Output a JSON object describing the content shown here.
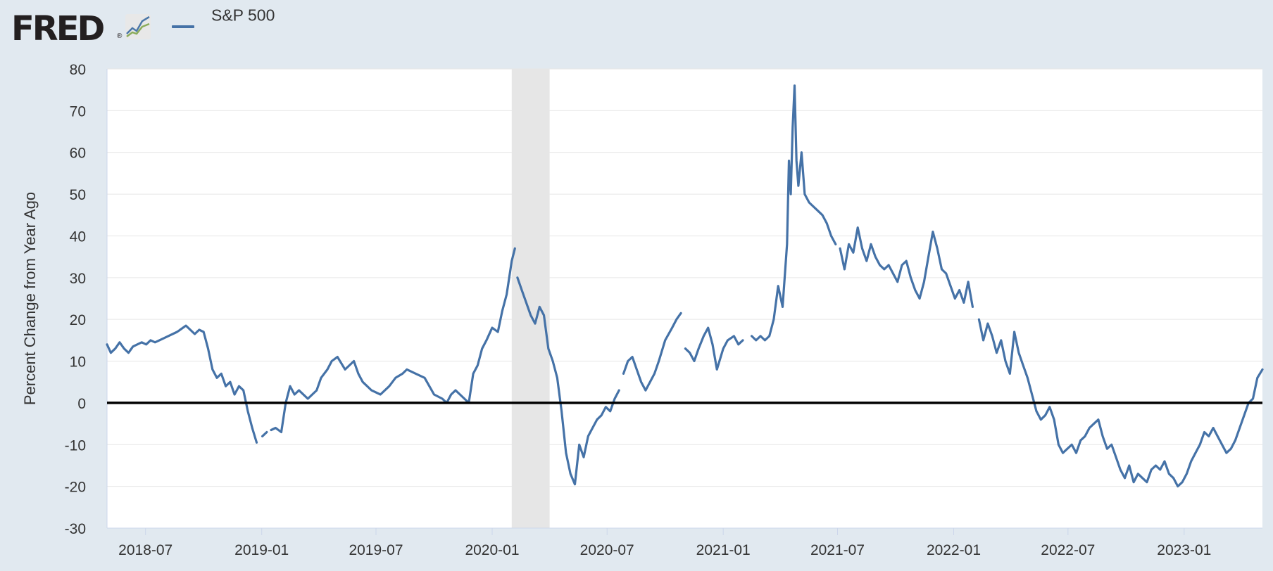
{
  "header": {
    "logo_text": "FRED",
    "logo_reg": "®",
    "logo_icon": "line-chart-icon"
  },
  "legend": {
    "series_label": "S&P 500",
    "series_color": "#4572a7"
  },
  "chart_data": {
    "type": "line",
    "title": "",
    "ylabel": "Percent Change from Year Ago",
    "xlabel": "",
    "x_unit": "date",
    "xlim": [
      "2018-05-01",
      "2023-05-05"
    ],
    "ylim": [
      -30,
      80
    ],
    "yticks": [
      -30,
      -20,
      -10,
      0,
      10,
      20,
      30,
      40,
      50,
      60,
      70,
      80
    ],
    "xticks": [
      "2018-07",
      "2019-01",
      "2019-07",
      "2020-01",
      "2020-07",
      "2021-01",
      "2021-07",
      "2022-01",
      "2022-07",
      "2023-01"
    ],
    "recession": {
      "start": "2020-02-01",
      "end": "2020-04-01"
    },
    "zero_line": 0,
    "grid": true,
    "series": [
      {
        "name": "S&P 500",
        "color": "#4572a7",
        "points": [
          [
            "2018-05-01",
            14
          ],
          [
            "2018-05-07",
            12
          ],
          [
            "2018-05-14",
            13
          ],
          [
            "2018-05-21",
            14.5
          ],
          [
            "2018-05-28",
            13
          ],
          [
            "2018-06-04",
            12
          ],
          [
            "2018-06-11",
            13.5
          ],
          [
            "2018-06-18",
            14
          ],
          [
            "2018-06-25",
            14.5
          ],
          [
            "2018-07-02",
            14
          ],
          [
            "2018-07-09",
            15
          ],
          [
            "2018-07-16",
            14.5
          ],
          [
            "2018-07-23",
            15
          ],
          [
            "2018-08-06",
            16
          ],
          [
            "2018-08-20",
            17
          ],
          [
            "2018-09-03",
            18.5
          ],
          [
            "2018-09-17",
            16.5
          ],
          [
            "2018-09-24",
            17.5
          ],
          [
            "2018-10-01",
            17
          ],
          [
            "2018-10-08",
            13
          ],
          [
            "2018-10-15",
            8
          ],
          [
            "2018-10-22",
            6
          ],
          [
            "2018-10-29",
            7
          ],
          [
            "2018-11-05",
            4
          ],
          [
            "2018-11-12",
            5
          ],
          [
            "2018-11-19",
            2
          ],
          [
            "2018-11-26",
            4
          ],
          [
            "2018-12-03",
            3
          ],
          [
            "2018-12-10",
            -2
          ],
          [
            "2018-12-17",
            -6
          ],
          [
            "2018-12-24",
            -9.5
          ],
          null,
          [
            "2019-01-02",
            -8
          ],
          [
            "2019-01-09",
            -7
          ],
          null,
          [
            "2019-01-16",
            -6.5
          ],
          [
            "2019-01-23",
            -6
          ],
          [
            "2019-02-01",
            -7
          ],
          [
            "2019-02-08",
            0
          ],
          [
            "2019-02-15",
            4
          ],
          [
            "2019-02-22",
            2
          ],
          [
            "2019-03-01",
            3
          ],
          [
            "2019-03-15",
            1
          ],
          [
            "2019-03-29",
            3
          ],
          [
            "2019-04-05",
            6
          ],
          [
            "2019-04-15",
            8
          ],
          [
            "2019-04-22",
            10
          ],
          [
            "2019-05-01",
            11
          ],
          [
            "2019-05-13",
            8
          ],
          [
            "2019-05-20",
            9
          ],
          [
            "2019-05-27",
            10
          ],
          [
            "2019-06-03",
            7
          ],
          [
            "2019-06-10",
            5
          ],
          [
            "2019-06-24",
            3
          ],
          [
            "2019-07-08",
            2
          ],
          [
            "2019-07-22",
            4
          ],
          [
            "2019-08-01",
            6
          ],
          [
            "2019-08-12",
            7
          ],
          [
            "2019-08-19",
            8
          ],
          [
            "2019-09-02",
            7
          ],
          [
            "2019-09-16",
            6
          ],
          [
            "2019-10-01",
            2
          ],
          [
            "2019-10-14",
            1
          ],
          [
            "2019-10-21",
            0
          ],
          [
            "2019-10-28",
            2
          ],
          [
            "2019-11-04",
            3
          ],
          [
            "2019-11-11",
            2
          ],
          [
            "2019-11-25",
            0
          ],
          [
            "2019-12-02",
            7
          ],
          [
            "2019-12-09",
            9
          ],
          [
            "2019-12-16",
            13
          ],
          [
            "2019-12-23",
            15
          ],
          [
            "2020-01-01",
            18
          ],
          [
            "2020-01-10",
            17
          ],
          [
            "2020-01-17",
            22
          ],
          [
            "2020-01-24",
            26
          ],
          [
            "2020-02-01",
            34
          ],
          [
            "2020-02-06",
            37
          ],
          null,
          [
            "2020-02-10",
            30
          ],
          [
            "2020-02-17",
            27
          ],
          [
            "2020-02-24",
            24
          ],
          [
            "2020-03-02",
            21
          ],
          [
            "2020-03-09",
            19
          ],
          [
            "2020-03-16",
            23
          ],
          [
            "2020-03-23",
            21
          ],
          [
            "2020-03-30",
            13
          ],
          [
            "2020-04-06",
            10
          ],
          [
            "2020-04-13",
            6
          ],
          [
            "2020-04-20",
            -2
          ],
          [
            "2020-04-27",
            -12
          ],
          [
            "2020-05-04",
            -17
          ],
          [
            "2020-05-11",
            -19.5
          ],
          [
            "2020-05-18",
            -10
          ],
          [
            "2020-05-25",
            -13
          ],
          [
            "2020-06-01",
            -8
          ],
          [
            "2020-06-08",
            -6
          ],
          [
            "2020-06-15",
            -4
          ],
          [
            "2020-06-22",
            -3
          ],
          [
            "2020-06-29",
            -1
          ],
          [
            "2020-07-06",
            -2
          ],
          [
            "2020-07-13",
            1
          ],
          [
            "2020-07-20",
            3
          ],
          null,
          [
            "2020-07-27",
            7
          ],
          [
            "2020-08-03",
            10
          ],
          [
            "2020-08-10",
            11
          ],
          [
            "2020-08-17",
            8
          ],
          [
            "2020-08-24",
            5
          ],
          [
            "2020-08-31",
            3
          ],
          [
            "2020-09-07",
            5
          ],
          [
            "2020-09-14",
            7
          ],
          [
            "2020-09-21",
            10
          ],
          [
            "2020-10-01",
            15
          ],
          [
            "2020-10-12",
            18
          ],
          [
            "2020-10-19",
            20
          ],
          [
            "2020-10-26",
            21.5
          ],
          null,
          [
            "2020-11-02",
            13
          ],
          [
            "2020-11-09",
            12
          ],
          [
            "2020-11-16",
            10
          ],
          [
            "2020-11-23",
            13
          ],
          [
            "2020-12-01",
            16
          ],
          [
            "2020-12-08",
            18
          ],
          [
            "2020-12-15",
            14
          ],
          [
            "2020-12-22",
            8
          ],
          [
            "2021-01-01",
            13
          ],
          [
            "2021-01-08",
            15
          ],
          [
            "2021-01-18",
            16
          ],
          [
            "2021-01-25",
            14
          ],
          [
            "2021-02-01",
            15
          ],
          null,
          [
            "2021-02-15",
            16
          ],
          [
            "2021-02-22",
            15
          ],
          [
            "2021-03-01",
            16
          ],
          [
            "2021-03-08",
            15
          ],
          [
            "2021-03-15",
            16
          ],
          [
            "2021-03-22",
            20
          ],
          [
            "2021-03-29",
            28
          ],
          [
            "2021-04-05",
            23
          ],
          [
            "2021-04-12",
            38
          ],
          [
            "2021-04-15",
            58
          ],
          [
            "2021-04-18",
            50
          ],
          [
            "2021-04-21",
            66
          ],
          [
            "2021-04-24",
            76
          ],
          [
            "2021-04-27",
            58
          ],
          [
            "2021-04-30",
            52
          ],
          [
            "2021-05-05",
            60
          ],
          [
            "2021-05-10",
            50
          ],
          [
            "2021-05-17",
            48
          ],
          [
            "2021-05-24",
            47
          ],
          [
            "2021-05-31",
            46
          ],
          [
            "2021-06-07",
            45
          ],
          [
            "2021-06-14",
            43
          ],
          [
            "2021-06-21",
            40
          ],
          [
            "2021-06-28",
            38
          ],
          null,
          [
            "2021-07-05",
            37
          ],
          [
            "2021-07-12",
            32
          ],
          [
            "2021-07-19",
            38
          ],
          [
            "2021-07-26",
            36
          ],
          [
            "2021-08-02",
            42
          ],
          [
            "2021-08-09",
            37
          ],
          [
            "2021-08-16",
            34
          ],
          [
            "2021-08-23",
            38
          ],
          [
            "2021-08-30",
            35
          ],
          [
            "2021-09-06",
            33
          ],
          [
            "2021-09-13",
            32
          ],
          [
            "2021-09-20",
            33
          ],
          [
            "2021-09-27",
            31
          ],
          [
            "2021-10-04",
            29
          ],
          [
            "2021-10-11",
            33
          ],
          [
            "2021-10-18",
            34
          ],
          [
            "2021-10-25",
            30
          ],
          [
            "2021-11-01",
            27
          ],
          [
            "2021-11-08",
            25
          ],
          [
            "2021-11-15",
            29
          ],
          [
            "2021-11-22",
            35
          ],
          [
            "2021-11-29",
            41
          ],
          [
            "2021-12-06",
            37
          ],
          [
            "2021-12-13",
            32
          ],
          [
            "2021-12-20",
            31
          ],
          [
            "2021-12-27",
            28
          ],
          [
            "2022-01-03",
            25
          ],
          [
            "2022-01-10",
            27
          ],
          [
            "2022-01-17",
            24
          ],
          [
            "2022-01-24",
            29
          ],
          [
            "2022-01-31",
            23
          ],
          null,
          [
            "2022-02-10",
            20
          ],
          [
            "2022-02-17",
            15
          ],
          [
            "2022-02-24",
            19
          ],
          [
            "2022-03-03",
            16
          ],
          [
            "2022-03-10",
            12
          ],
          [
            "2022-03-17",
            15
          ],
          [
            "2022-03-24",
            10
          ],
          [
            "2022-03-31",
            7
          ],
          [
            "2022-04-07",
            17
          ],
          [
            "2022-04-14",
            12
          ],
          [
            "2022-04-21",
            9
          ],
          [
            "2022-04-28",
            6
          ],
          [
            "2022-05-05",
            2
          ],
          [
            "2022-05-12",
            -2
          ],
          [
            "2022-05-19",
            -4
          ],
          [
            "2022-05-26",
            -3
          ],
          [
            "2022-06-02",
            -1
          ],
          [
            "2022-06-09",
            -4
          ],
          [
            "2022-06-16",
            -10
          ],
          [
            "2022-06-23",
            -12
          ],
          [
            "2022-06-30",
            -11
          ],
          [
            "2022-07-07",
            -10
          ],
          [
            "2022-07-14",
            -12
          ],
          [
            "2022-07-21",
            -9
          ],
          [
            "2022-07-28",
            -8
          ],
          [
            "2022-08-04",
            -6
          ],
          [
            "2022-08-11",
            -5
          ],
          [
            "2022-08-18",
            -4
          ],
          [
            "2022-08-25",
            -8
          ],
          [
            "2022-09-01",
            -11
          ],
          [
            "2022-09-08",
            -10
          ],
          [
            "2022-09-15",
            -13
          ],
          [
            "2022-09-22",
            -16
          ],
          [
            "2022-09-29",
            -18
          ],
          [
            "2022-10-06",
            -15
          ],
          [
            "2022-10-13",
            -19
          ],
          [
            "2022-10-20",
            -17
          ],
          [
            "2022-10-27",
            -18
          ],
          [
            "2022-11-03",
            -19
          ],
          [
            "2022-11-10",
            -16
          ],
          [
            "2022-11-17",
            -15
          ],
          [
            "2022-11-24",
            -16
          ],
          [
            "2022-12-01",
            -14
          ],
          [
            "2022-12-08",
            -17
          ],
          [
            "2022-12-15",
            -18
          ],
          [
            "2022-12-22",
            -20
          ],
          [
            "2022-12-29",
            -19
          ],
          [
            "2023-01-05",
            -17
          ],
          [
            "2023-01-12",
            -14
          ],
          [
            "2023-01-19",
            -12
          ],
          [
            "2023-01-26",
            -10
          ],
          [
            "2023-02-02",
            -7
          ],
          [
            "2023-02-09",
            -8
          ],
          [
            "2023-02-16",
            -6
          ],
          [
            "2023-02-23",
            -8
          ],
          [
            "2023-03-02",
            -10
          ],
          [
            "2023-03-09",
            -12
          ],
          [
            "2023-03-16",
            -11
          ],
          [
            "2023-03-23",
            -9
          ],
          [
            "2023-03-30",
            -6
          ],
          [
            "2023-04-06",
            -3
          ],
          [
            "2023-04-13",
            0
          ],
          [
            "2023-04-20",
            1
          ],
          [
            "2023-04-27",
            6
          ],
          [
            "2023-05-05",
            8
          ]
        ]
      }
    ]
  }
}
